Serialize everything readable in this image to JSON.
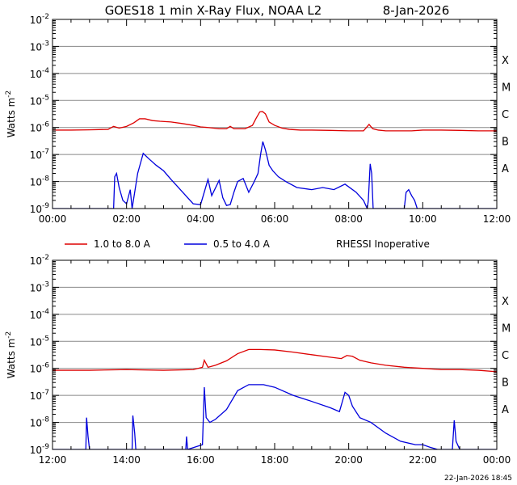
{
  "header": {
    "title": "GOES18 1 min X-Ray Flux, NOAA L2",
    "date": "8-Jan-2026"
  },
  "footer": {
    "timestamp": "22-Jan-2026 18:45"
  },
  "colors": {
    "long": "#dd0000",
    "short": "#0000dd",
    "grid": "#888888",
    "axis": "#000000"
  },
  "chart_data": [
    {
      "type": "line",
      "title": "GOES18 1 min X-Ray Flux, NOAA L2",
      "ylabel": "Watts m-2",
      "yscale": "log",
      "ylim": [
        1e-09,
        0.01
      ],
      "xlim_hours": [
        0,
        12
      ],
      "xticks": [
        "00:00",
        "02:00",
        "04:00",
        "06:00",
        "08:00",
        "10:00",
        "12:00"
      ],
      "yticks_exp": [
        -9,
        -8,
        -7,
        -6,
        -5,
        -4,
        -3,
        -2
      ],
      "class_labels": [
        {
          "label": "A",
          "exp": -8
        },
        {
          "label": "B",
          "exp": -7
        },
        {
          "label": "C",
          "exp": -6
        },
        {
          "label": "M",
          "exp": -5
        },
        {
          "label": "X",
          "exp": -4
        }
      ],
      "grid": true,
      "series": [
        {
          "name": "1.0 to 8.0 A",
          "color": "#dd0000",
          "x_hours": [
            0,
            0.5,
            1.0,
            1.5,
            1.65,
            1.8,
            2.0,
            2.2,
            2.35,
            2.5,
            2.7,
            2.9,
            3.2,
            3.5,
            3.8,
            4.0,
            4.2,
            4.5,
            4.7,
            4.8,
            4.9,
            5.0,
            5.2,
            5.4,
            5.5,
            5.6,
            5.67,
            5.75,
            5.85,
            6.0,
            6.2,
            6.4,
            6.7,
            7.0,
            7.5,
            8.0,
            8.4,
            8.55,
            8.65,
            8.8,
            9.0,
            9.4,
            9.7,
            10.0,
            10.5,
            11.0,
            11.5,
            12.0
          ],
          "y": [
            8e-07,
            8e-07,
            8.2e-07,
            8.5e-07,
            1.1e-06,
            9.5e-07,
            1.1e-06,
            1.5e-06,
            2.1e-06,
            2.1e-06,
            1.8e-06,
            1.7e-06,
            1.6e-06,
            1.4e-06,
            1.2e-06,
            1.05e-06,
            1e-06,
            9e-07,
            9e-07,
            1.1e-06,
            9e-07,
            9e-07,
            9e-07,
            1.2e-06,
            2.2e-06,
            3.8e-06,
            3.9e-06,
            3.2e-06,
            1.6e-06,
            1.2e-06,
            9.5e-07,
            8.5e-07,
            8e-07,
            8e-07,
            7.8e-07,
            7.5e-07,
            7.5e-07,
            1.3e-06,
            9e-07,
            8e-07,
            7.5e-07,
            7.5e-07,
            7.5e-07,
            8e-07,
            8e-07,
            7.8e-07,
            7.5e-07,
            7.5e-07
          ]
        },
        {
          "name": "0.5 to 4.0 A",
          "color": "#0000dd",
          "x_hours": [
            0,
            1.65,
            1.68,
            1.73,
            1.8,
            1.9,
            2.0,
            2.1,
            2.15,
            2.3,
            2.45,
            2.6,
            2.8,
            3.0,
            3.2,
            3.4,
            3.6,
            3.8,
            4.0,
            4.2,
            4.3,
            4.5,
            4.6,
            4.7,
            4.8,
            4.9,
            5.0,
            5.15,
            5.3,
            5.45,
            5.55,
            5.62,
            5.68,
            5.75,
            5.85,
            5.95,
            6.1,
            6.3,
            6.6,
            7.0,
            7.3,
            7.6,
            7.9,
            8.2,
            8.4,
            8.5,
            8.53,
            8.58,
            8.62,
            8.66,
            8.7,
            9.5,
            9.55,
            9.62,
            9.7,
            9.78,
            9.85,
            9.9,
            12.0
          ],
          "y": [
            1e-09,
            1e-09,
            1.5e-08,
            2e-08,
            6e-09,
            2e-09,
            1.5e-09,
            5e-09,
            1e-09,
            2e-08,
            1.1e-07,
            7e-08,
            4e-08,
            2.5e-08,
            1.2e-08,
            6e-09,
            3e-09,
            1.5e-09,
            1.4e-09,
            1.2e-08,
            3e-09,
            1.1e-08,
            2.5e-09,
            1.3e-09,
            1.4e-09,
            4e-09,
            1e-08,
            1.3e-08,
            4e-09,
            1e-08,
            2e-08,
            1e-07,
            3e-07,
            1.5e-07,
            4e-08,
            2.5e-08,
            1.5e-08,
            1e-08,
            6e-09,
            5e-09,
            6e-09,
            5e-09,
            8e-09,
            4e-09,
            2e-09,
            1e-09,
            2e-09,
            4.5e-08,
            2e-08,
            1e-09,
            1e-09,
            1e-09,
            4e-09,
            5e-09,
            3e-09,
            2e-09,
            1e-09,
            1e-09,
            1e-09
          ]
        }
      ]
    },
    {
      "type": "line",
      "ylabel": "Watts m-2",
      "yscale": "log",
      "ylim": [
        1e-09,
        0.01
      ],
      "xlim_hours": [
        12,
        24
      ],
      "xticks": [
        "12:00",
        "14:00",
        "16:00",
        "18:00",
        "20:00",
        "22:00",
        "00:00"
      ],
      "yticks_exp": [
        -9,
        -8,
        -7,
        -6,
        -5,
        -4,
        -3,
        -2
      ],
      "class_labels": [
        {
          "label": "A",
          "exp": -8
        },
        {
          "label": "B",
          "exp": -7
        },
        {
          "label": "C",
          "exp": -6
        },
        {
          "label": "M",
          "exp": -5
        },
        {
          "label": "X",
          "exp": -4
        }
      ],
      "grid": true,
      "series": [
        {
          "name": "1.0 to 8.0 A",
          "color": "#dd0000",
          "x_hours": [
            12,
            13,
            14,
            15,
            15.8,
            16.05,
            16.1,
            16.2,
            16.4,
            16.7,
            17.0,
            17.3,
            17.6,
            18.0,
            18.5,
            19.0,
            19.5,
            19.8,
            19.95,
            20.1,
            20.3,
            20.6,
            21.0,
            21.5,
            22.0,
            22.5,
            23.0,
            23.5,
            24.0
          ],
          "y": [
            8.5e-07,
            8.5e-07,
            9e-07,
            8.5e-07,
            9e-07,
            1.1e-06,
            2e-06,
            1.1e-06,
            1.3e-06,
            1.9e-06,
            3.5e-06,
            5e-06,
            5e-06,
            4.8e-06,
            4e-06,
            3.2e-06,
            2.6e-06,
            2.3e-06,
            3e-06,
            2.8e-06,
            2e-06,
            1.6e-06,
            1.3e-06,
            1.1e-06,
            1e-06,
            9e-07,
            9e-07,
            8.5e-07,
            7.5e-07
          ]
        },
        {
          "name": "0.5 to 4.0 A",
          "color": "#0000dd",
          "x_hours": [
            12,
            12.9,
            12.92,
            12.96,
            13.0,
            14.15,
            14.17,
            14.22,
            14.25,
            15.6,
            15.62,
            15.65,
            16.05,
            16.1,
            16.15,
            16.25,
            16.4,
            16.7,
            17.0,
            17.3,
            17.7,
            18.0,
            18.5,
            19.0,
            19.5,
            19.75,
            19.9,
            20.0,
            20.1,
            20.3,
            20.6,
            21.0,
            21.4,
            21.8,
            22.0,
            22.2,
            22.4,
            22.8,
            22.85,
            22.9,
            23.0,
            23.2,
            24.0
          ],
          "y": [
            1e-09,
            1e-09,
            1.5e-08,
            3e-09,
            1e-09,
            1e-09,
            1.8e-08,
            4e-09,
            1e-09,
            1e-09,
            3e-09,
            1e-09,
            1.5e-09,
            2e-07,
            1.5e-08,
            1e-08,
            1.3e-08,
            3e-08,
            1.5e-07,
            2.5e-07,
            2.5e-07,
            2e-07,
            1e-07,
            6e-08,
            3.5e-08,
            2.5e-08,
            1.3e-07,
            1e-07,
            4e-08,
            1.5e-08,
            1e-08,
            4e-09,
            2e-09,
            1.5e-09,
            1.5e-09,
            1.2e-09,
            1e-09,
            1e-09,
            1.2e-08,
            2e-09,
            1e-09,
            1e-09,
            1e-09
          ]
        }
      ]
    }
  ],
  "legend": {
    "long_label": "1.0 to 8.0 A",
    "short_label": "0.5 to 4.0 A",
    "note": "RHESSI Inoperative"
  }
}
